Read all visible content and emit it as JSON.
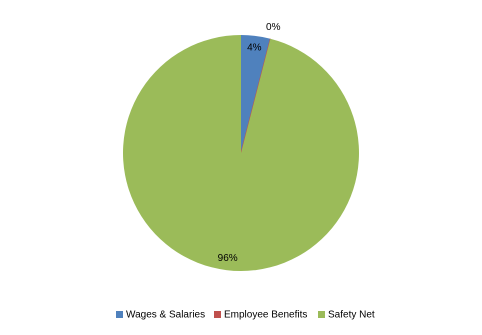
{
  "chart_data": {
    "type": "pie",
    "categories": [
      "Wages & Salaries",
      "Employee Benefits",
      "Safety Net"
    ],
    "values": [
      4,
      0,
      96
    ],
    "value_labels": [
      "4%",
      "0%",
      "96%"
    ],
    "colors": [
      "#4f81bd",
      "#c0504d",
      "#9bbb59"
    ],
    "legend": "bottom"
  }
}
